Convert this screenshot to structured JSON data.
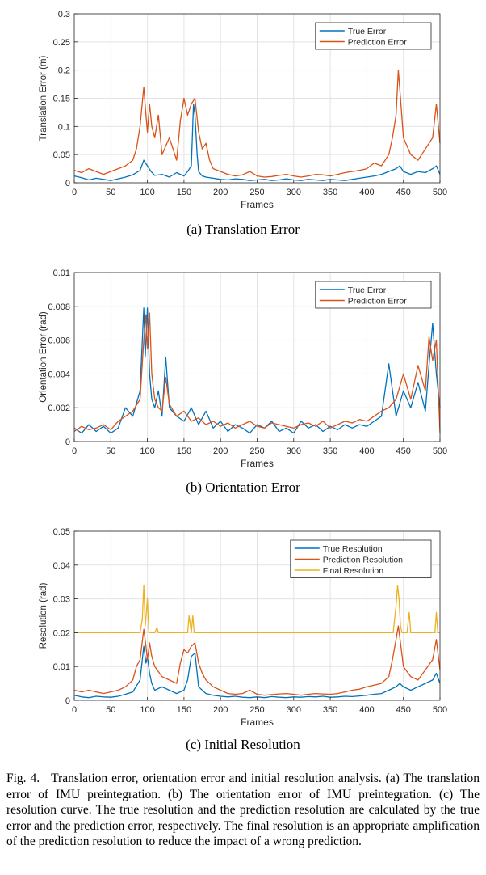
{
  "chart_data": [
    {
      "type": "line",
      "title": "",
      "subcaption": "(a) Translation Error",
      "xlabel": "Frames",
      "ylabel": "Translation Error (m)",
      "xlim": [
        0,
        500
      ],
      "ylim": [
        0,
        0.3
      ],
      "xticks": [
        0,
        50,
        100,
        150,
        200,
        250,
        300,
        350,
        400,
        450,
        500
      ],
      "yticks": [
        0,
        0.05,
        0.1,
        0.15,
        0.2,
        0.25,
        0.3
      ],
      "ytick_labels": [
        "0",
        "0.05",
        "0.1",
        "0.15",
        "0.2",
        "0.25",
        "0.3"
      ],
      "grid": true,
      "legend": "top-right",
      "series": [
        {
          "name": "True Error",
          "color": "#0072BD",
          "x": [
            0,
            10,
            20,
            30,
            40,
            50,
            60,
            70,
            80,
            90,
            95,
            100,
            105,
            110,
            120,
            130,
            140,
            150,
            155,
            160,
            163,
            165,
            168,
            170,
            175,
            180,
            190,
            200,
            210,
            220,
            230,
            240,
            250,
            260,
            270,
            280,
            290,
            300,
            310,
            320,
            330,
            340,
            350,
            360,
            370,
            380,
            390,
            400,
            410,
            420,
            430,
            440,
            445,
            450,
            460,
            470,
            480,
            490,
            495,
            500
          ],
          "values": [
            0.012,
            0.009,
            0.005,
            0.008,
            0.006,
            0.004,
            0.007,
            0.01,
            0.014,
            0.022,
            0.04,
            0.03,
            0.02,
            0.013,
            0.015,
            0.01,
            0.018,
            0.012,
            0.02,
            0.03,
            0.14,
            0.12,
            0.05,
            0.02,
            0.012,
            0.01,
            0.008,
            0.006,
            0.005,
            0.007,
            0.006,
            0.004,
            0.005,
            0.006,
            0.004,
            0.005,
            0.007,
            0.005,
            0.004,
            0.006,
            0.005,
            0.004,
            0.006,
            0.005,
            0.004,
            0.006,
            0.008,
            0.01,
            0.012,
            0.015,
            0.02,
            0.025,
            0.03,
            0.02,
            0.015,
            0.02,
            0.018,
            0.025,
            0.03,
            0.015
          ]
        },
        {
          "name": "Prediction Error",
          "color": "#D95319",
          "x": [
            0,
            10,
            20,
            30,
            40,
            50,
            60,
            70,
            80,
            85,
            90,
            95,
            98,
            100,
            103,
            106,
            110,
            115,
            120,
            130,
            140,
            145,
            150,
            155,
            160,
            165,
            170,
            175,
            180,
            185,
            190,
            200,
            210,
            220,
            230,
            240,
            250,
            260,
            270,
            280,
            290,
            300,
            310,
            320,
            330,
            340,
            350,
            360,
            370,
            380,
            390,
            400,
            410,
            420,
            430,
            435,
            440,
            443,
            446,
            450,
            460,
            470,
            480,
            490,
            495,
            500
          ],
          "values": [
            0.022,
            0.018,
            0.025,
            0.02,
            0.015,
            0.02,
            0.025,
            0.03,
            0.04,
            0.06,
            0.1,
            0.17,
            0.12,
            0.09,
            0.14,
            0.1,
            0.08,
            0.12,
            0.05,
            0.08,
            0.04,
            0.11,
            0.15,
            0.12,
            0.14,
            0.15,
            0.09,
            0.06,
            0.07,
            0.04,
            0.025,
            0.02,
            0.015,
            0.012,
            0.014,
            0.02,
            0.012,
            0.01,
            0.011,
            0.013,
            0.015,
            0.012,
            0.01,
            0.012,
            0.015,
            0.014,
            0.012,
            0.015,
            0.018,
            0.02,
            0.022,
            0.025,
            0.035,
            0.03,
            0.05,
            0.08,
            0.12,
            0.2,
            0.15,
            0.08,
            0.05,
            0.04,
            0.06,
            0.08,
            0.14,
            0.07
          ]
        }
      ]
    },
    {
      "type": "line",
      "title": "",
      "subcaption": "(b) Orientation Error",
      "xlabel": "Frames",
      "ylabel": "Orientation Error (rad)",
      "xlim": [
        0,
        500
      ],
      "ylim": [
        0,
        0.01
      ],
      "xticks": [
        0,
        50,
        100,
        150,
        200,
        250,
        300,
        350,
        400,
        450,
        500
      ],
      "yticks": [
        0,
        0.002,
        0.004,
        0.006,
        0.008,
        0.01
      ],
      "ytick_labels": [
        "0",
        "0.002",
        "0.004",
        "0.006",
        "0.008",
        "0.01"
      ],
      "grid": true,
      "legend": "top-right",
      "series": [
        {
          "name": "True Error",
          "color": "#0072BD",
          "x": [
            0,
            10,
            20,
            30,
            40,
            50,
            60,
            70,
            80,
            90,
            95,
            97,
            100,
            103,
            106,
            110,
            115,
            120,
            125,
            130,
            140,
            150,
            160,
            170,
            180,
            190,
            200,
            210,
            220,
            230,
            240,
            250,
            260,
            270,
            280,
            290,
            300,
            310,
            320,
            330,
            340,
            350,
            360,
            370,
            380,
            390,
            400,
            410,
            420,
            430,
            440,
            450,
            460,
            470,
            480,
            485,
            490,
            495,
            500
          ],
          "values": [
            0.0008,
            0.0005,
            0.001,
            0.0006,
            0.0009,
            0.0005,
            0.0008,
            0.002,
            0.0015,
            0.003,
            0.0079,
            0.005,
            0.0079,
            0.004,
            0.0025,
            0.002,
            0.003,
            0.0015,
            0.005,
            0.002,
            0.0015,
            0.0012,
            0.002,
            0.001,
            0.0018,
            0.0008,
            0.0012,
            0.0006,
            0.001,
            0.0008,
            0.0005,
            0.001,
            0.0008,
            0.0012,
            0.0006,
            0.0008,
            0.0005,
            0.0012,
            0.0008,
            0.001,
            0.0006,
            0.0009,
            0.0007,
            0.001,
            0.0008,
            0.001,
            0.0009,
            0.0012,
            0.0015,
            0.0046,
            0.0015,
            0.003,
            0.002,
            0.0035,
            0.0018,
            0.0045,
            0.007,
            0.004,
            0.002
          ]
        },
        {
          "name": "Prediction Error",
          "color": "#D95319",
          "x": [
            0,
            10,
            20,
            30,
            40,
            50,
            60,
            70,
            80,
            90,
            95,
            98,
            100,
            103,
            106,
            110,
            115,
            120,
            125,
            130,
            140,
            150,
            160,
            170,
            180,
            190,
            200,
            210,
            220,
            230,
            240,
            250,
            260,
            270,
            280,
            290,
            300,
            310,
            320,
            330,
            340,
            350,
            360,
            370,
            380,
            390,
            400,
            410,
            420,
            430,
            440,
            450,
            460,
            470,
            480,
            485,
            490,
            495,
            500
          ],
          "values": [
            0.0006,
            0.0009,
            0.0007,
            0.0008,
            0.001,
            0.0007,
            0.0012,
            0.0015,
            0.0018,
            0.0025,
            0.006,
            0.0075,
            0.0055,
            0.0076,
            0.004,
            0.0025,
            0.002,
            0.0018,
            0.0038,
            0.0022,
            0.0015,
            0.0018,
            0.0012,
            0.0014,
            0.001,
            0.0012,
            0.0009,
            0.0011,
            0.0008,
            0.001,
            0.0012,
            0.0009,
            0.0008,
            0.0011,
            0.001,
            0.0009,
            0.0008,
            0.001,
            0.0011,
            0.0009,
            0.0012,
            0.0008,
            0.001,
            0.0012,
            0.0011,
            0.0013,
            0.0012,
            0.0015,
            0.0018,
            0.002,
            0.0025,
            0.004,
            0.0025,
            0.0045,
            0.003,
            0.0062,
            0.0048,
            0.006,
            0.0005
          ]
        }
      ]
    },
    {
      "type": "line",
      "title": "",
      "subcaption": "(c) Initial Resolution",
      "xlabel": "Frames",
      "ylabel": "Resolution (rad)",
      "xlim": [
        0,
        500
      ],
      "ylim": [
        0,
        0.05
      ],
      "xticks": [
        0,
        50,
        100,
        150,
        200,
        250,
        300,
        350,
        400,
        450,
        500
      ],
      "yticks": [
        0,
        0.01,
        0.02,
        0.03,
        0.04,
        0.05
      ],
      "ytick_labels": [
        "0",
        "0.01",
        "0.02",
        "0.03",
        "0.04",
        "0.05"
      ],
      "grid": true,
      "legend": "top-right",
      "series": [
        {
          "name": "True Resolution",
          "color": "#0072BD",
          "x": [
            0,
            10,
            20,
            30,
            40,
            50,
            60,
            70,
            80,
            90,
            95,
            98,
            100,
            103,
            106,
            110,
            120,
            130,
            140,
            150,
            155,
            160,
            165,
            170,
            180,
            190,
            200,
            210,
            220,
            230,
            240,
            250,
            260,
            270,
            280,
            290,
            300,
            310,
            320,
            330,
            340,
            350,
            360,
            370,
            380,
            390,
            400,
            410,
            420,
            430,
            440,
            445,
            450,
            460,
            470,
            480,
            490,
            495,
            500
          ],
          "values": [
            0.0015,
            0.001,
            0.0008,
            0.0012,
            0.001,
            0.0009,
            0.0012,
            0.0018,
            0.0025,
            0.006,
            0.016,
            0.011,
            0.013,
            0.008,
            0.005,
            0.003,
            0.004,
            0.003,
            0.002,
            0.003,
            0.006,
            0.013,
            0.014,
            0.004,
            0.002,
            0.0015,
            0.0012,
            0.001,
            0.0012,
            0.0009,
            0.0008,
            0.001,
            0.0008,
            0.0011,
            0.0009,
            0.0008,
            0.001,
            0.0009,
            0.0011,
            0.001,
            0.0012,
            0.0009,
            0.001,
            0.0012,
            0.0011,
            0.0013,
            0.0015,
            0.0018,
            0.002,
            0.003,
            0.004,
            0.005,
            0.004,
            0.003,
            0.004,
            0.005,
            0.006,
            0.008,
            0.005
          ]
        },
        {
          "name": "Prediction Resolution",
          "color": "#D95319",
          "x": [
            0,
            10,
            20,
            30,
            40,
            50,
            60,
            70,
            80,
            85,
            90,
            95,
            98,
            100,
            103,
            106,
            110,
            120,
            130,
            140,
            145,
            150,
            155,
            160,
            165,
            170,
            175,
            180,
            190,
            200,
            210,
            220,
            230,
            240,
            250,
            260,
            270,
            280,
            290,
            300,
            310,
            320,
            330,
            340,
            350,
            360,
            370,
            380,
            390,
            400,
            410,
            420,
            430,
            435,
            440,
            443,
            446,
            450,
            460,
            470,
            480,
            490,
            495,
            500
          ],
          "values": [
            0.003,
            0.0025,
            0.003,
            0.0025,
            0.002,
            0.0025,
            0.003,
            0.004,
            0.006,
            0.01,
            0.012,
            0.021,
            0.016,
            0.012,
            0.017,
            0.013,
            0.01,
            0.007,
            0.006,
            0.005,
            0.011,
            0.015,
            0.014,
            0.016,
            0.017,
            0.011,
            0.008,
            0.006,
            0.004,
            0.003,
            0.002,
            0.0018,
            0.002,
            0.003,
            0.0018,
            0.0015,
            0.0017,
            0.0019,
            0.002,
            0.0018,
            0.0015,
            0.0018,
            0.002,
            0.0019,
            0.0018,
            0.002,
            0.0025,
            0.003,
            0.0033,
            0.004,
            0.0045,
            0.005,
            0.007,
            0.012,
            0.018,
            0.022,
            0.017,
            0.01,
            0.007,
            0.006,
            0.009,
            0.012,
            0.018,
            0.009
          ]
        },
        {
          "name": "Final Resolution",
          "color": "#EDB120",
          "x": [
            0,
            85,
            90,
            93,
            95,
            97,
            100,
            102,
            104,
            110,
            113,
            115,
            150,
            155,
            157,
            160,
            162,
            164,
            430,
            436,
            440,
            442,
            444,
            446,
            448,
            450,
            455,
            458,
            460,
            490,
            493,
            495,
            497,
            500
          ],
          "values": [
            0.02,
            0.02,
            0.02,
            0.024,
            0.034,
            0.022,
            0.03,
            0.02,
            0.02,
            0.02,
            0.0215,
            0.02,
            0.02,
            0.02,
            0.025,
            0.02,
            0.025,
            0.02,
            0.02,
            0.02,
            0.028,
            0.034,
            0.03,
            0.022,
            0.02,
            0.02,
            0.02,
            0.026,
            0.02,
            0.02,
            0.02,
            0.026,
            0.02,
            0.02
          ]
        }
      ]
    }
  ],
  "figure_caption": {
    "lead": "Fig. 4.",
    "text": "Translation error, orientation error and initial resolution analysis. (a) The translation error of IMU preintegration. (b) The orientation error of IMU preintegration. (c) The resolution curve. The true resolution and the prediction resolution are calculated by the true error and the prediction error, respectively. The final resolution is an appropriate amplification of the prediction resolution to reduce the impact of a wrong prediction."
  }
}
